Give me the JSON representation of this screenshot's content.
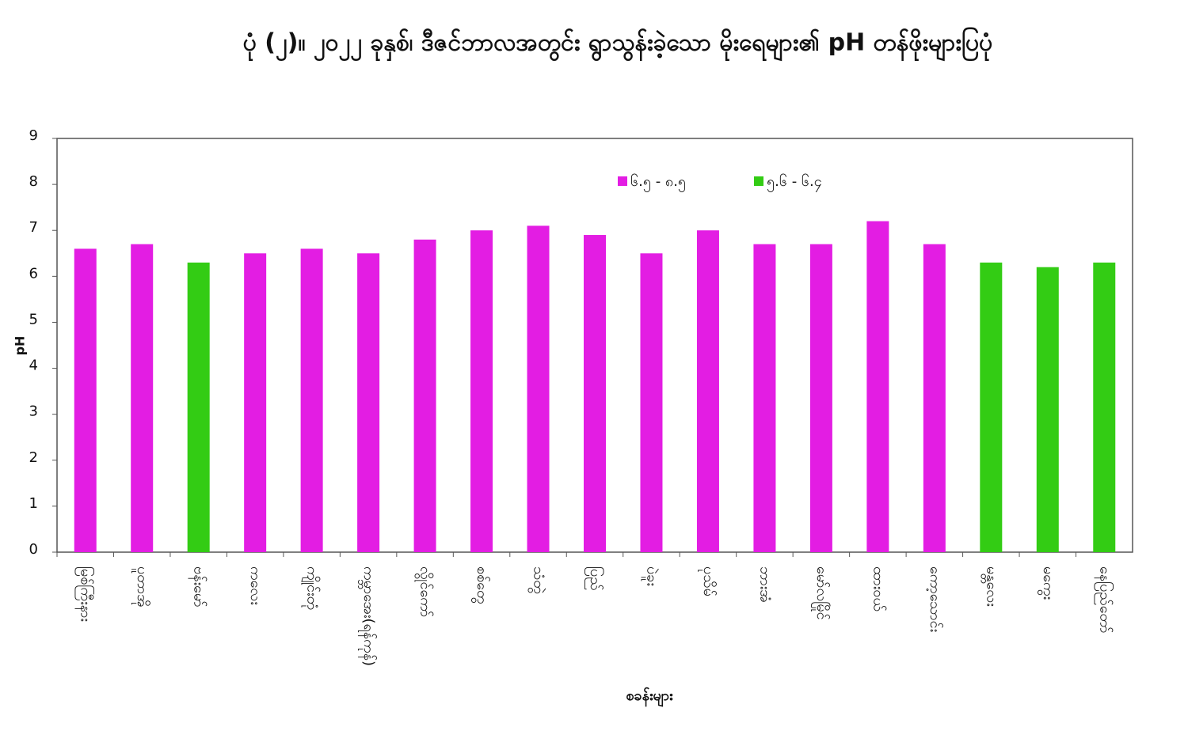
{
  "chart_data": {
    "type": "bar",
    "title": "ပုံ (၂)။ ၂၀၂၂ ခုနှစ်၊ ဒီဇင်ဘာလအတွင်း ရွာသွန်းခဲ့သော မိုးရေများ၏ pH တန်ဖိုးများပြပုံ",
    "y_label": "pH",
    "x_label": "စခန်းများ",
    "categories": [
      "မြစ်ကြီးနား",
      "ပူတာအို",
      "ဗန်းမော်",
      "ကလေး",
      "ကျိုင်းတုံ",
      "ကမ္ဘာအေး(ရန်ကုန်)",
      "လွိုင်ကော်",
      "စစ်တွေ",
      "သံတွဲ",
      "ပြည်",
      "ပဲခူး",
      "ပုသိမ်",
      "ဘားအံ",
      "မော်လမြိုင်",
      "ထားဝယ်",
      "ကော့သောင်း",
      "မန္တလေး",
      "မကွေး",
      "နေပြည်တော်"
    ],
    "series": [
      {
        "name": "၆.၅ - ၈.၅",
        "color": "#e31de3",
        "values": [
          6.6,
          6.7,
          null,
          6.5,
          6.6,
          6.5,
          6.8,
          7.0,
          7.1,
          6.9,
          6.5,
          7.0,
          6.7,
          6.7,
          7.2,
          6.7,
          null,
          null,
          null
        ]
      },
      {
        "name": "၅.၆ - ၆.၄",
        "color": "#33cc14",
        "values": [
          null,
          null,
          6.3,
          null,
          null,
          null,
          null,
          null,
          null,
          null,
          null,
          null,
          null,
          null,
          null,
          null,
          6.3,
          6.2,
          6.3
        ]
      }
    ],
    "ylim": [
      0,
      9
    ],
    "yticks": [
      0,
      1,
      2,
      3,
      4,
      5,
      6,
      7,
      8,
      9
    ],
    "grid": false,
    "legend": "top-center"
  }
}
